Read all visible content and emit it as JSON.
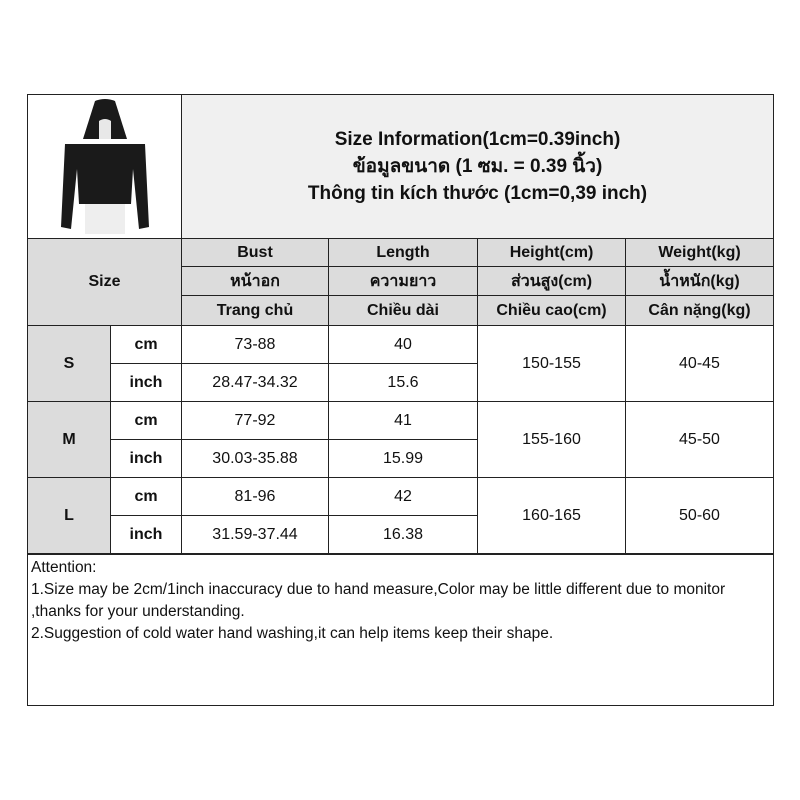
{
  "title": {
    "line1": "Size Information(1cm=0.39inch)",
    "line2": "ข้อมูลขนาด (1 ซม. = 0.39 นิ้ว)",
    "line3": "Thông tin kích thước (1cm=0,39 inch)"
  },
  "size_label": "Size",
  "headers": [
    [
      "Bust",
      "หน้าอก",
      "Trang chủ"
    ],
    [
      "Length",
      "ความยาว",
      "Chiều dài"
    ],
    [
      "Height(cm)",
      "ส่วนสูง(cm)",
      "Chiều cao(cm)"
    ],
    [
      "Weight(kg)",
      "น้ำหนัก(kg)",
      "Cân nặng(kg)"
    ]
  ],
  "rows": [
    {
      "size": "S",
      "cm": {
        "unit": "cm",
        "bust": "73-88",
        "length": "40"
      },
      "inch": {
        "unit": "inch",
        "bust": "28.47-34.32",
        "length": "15.6"
      },
      "height": "150-155",
      "weight": "40-45"
    },
    {
      "size": "M",
      "cm": {
        "unit": "cm",
        "bust": "77-92",
        "length": "41"
      },
      "inch": {
        "unit": "inch",
        "bust": "30.03-35.88",
        "length": "15.99"
      },
      "height": "155-160",
      "weight": "45-50"
    },
    {
      "size": "L",
      "cm": {
        "unit": "cm",
        "bust": "81-96",
        "length": "42"
      },
      "inch": {
        "unit": "inch",
        "bust": "31.59-37.44",
        "length": "16.38"
      },
      "height": "160-165",
      "weight": "50-60"
    }
  ],
  "attention": {
    "heading": "Attention:",
    "note1": "1.Size may be 2cm/1inch inaccuracy due to hand measure,Color may be little different due to monitor ,thanks for your understanding.",
    "note2": "2.Suggestion of cold water hand washing,it can help items keep their shape."
  }
}
